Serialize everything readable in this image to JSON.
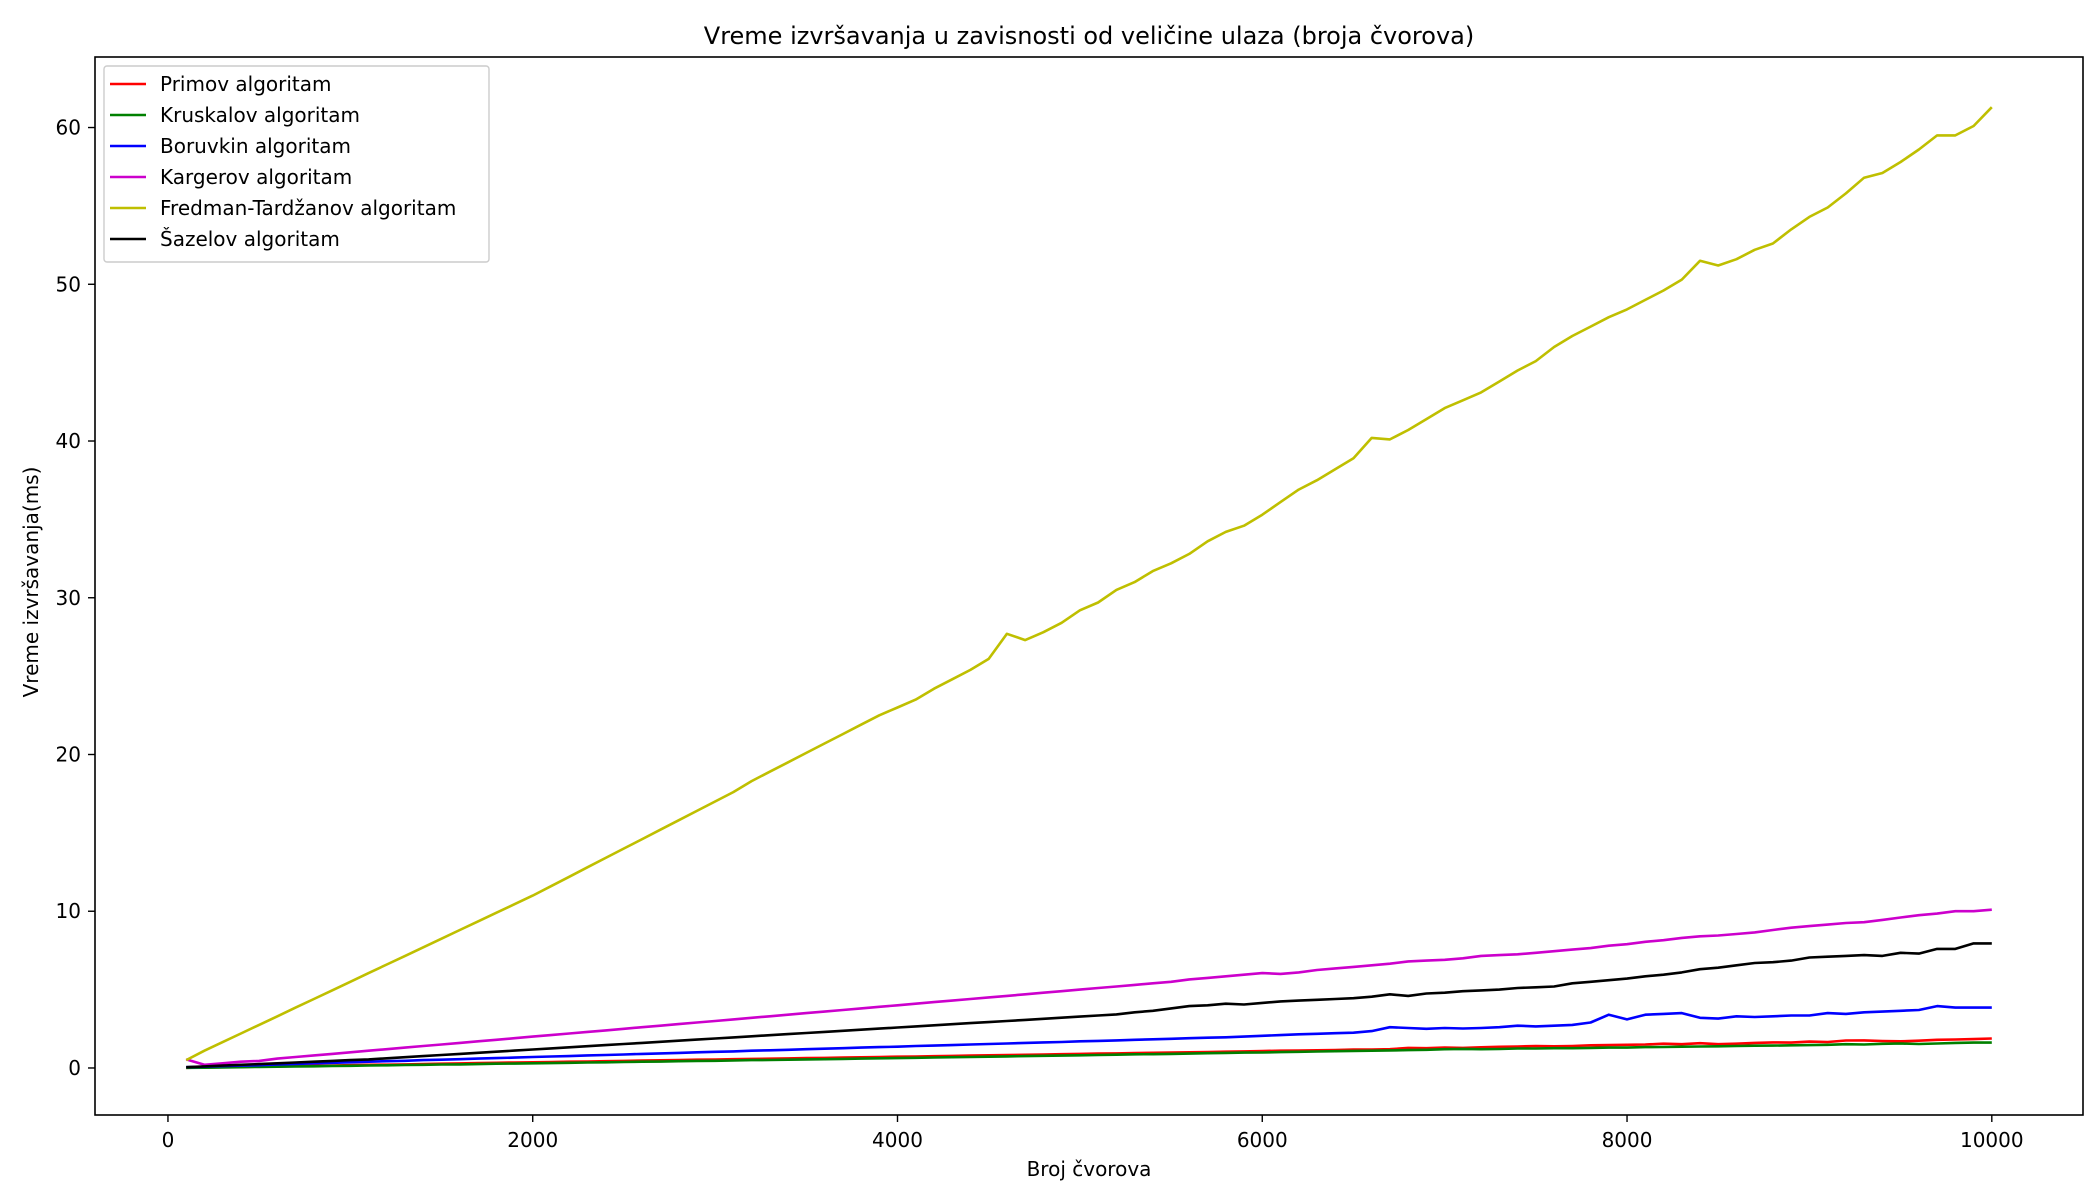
{
  "chart_data": {
    "type": "line",
    "title": "Vreme izvršavanja u zavisnosti od veličine ulaza (broja čvorova)",
    "xlabel": "Broj čvorova",
    "ylabel": "Vreme izvršavanja(ms)",
    "xlim": [
      -400,
      10500
    ],
    "ylim": [
      -3,
      64.5
    ],
    "xticks": [
      0,
      2000,
      4000,
      6000,
      8000,
      10000
    ],
    "yticks": [
      0,
      10,
      20,
      30,
      40,
      50,
      60
    ],
    "grid": false,
    "legend_position": "top-left",
    "x": [
      100,
      200,
      300,
      400,
      500,
      600,
      700,
      800,
      900,
      1000,
      1100,
      1200,
      1300,
      1400,
      1500,
      1600,
      1700,
      1800,
      1900,
      2000,
      2100,
      2200,
      2300,
      2400,
      2500,
      2600,
      2700,
      2800,
      2900,
      3000,
      3100,
      3200,
      3300,
      3400,
      3500,
      3600,
      3700,
      3800,
      3900,
      4000,
      4100,
      4200,
      4300,
      4400,
      4500,
      4600,
      4700,
      4800,
      4900,
      5000,
      5100,
      5200,
      5300,
      5400,
      5500,
      5600,
      5700,
      5800,
      5900,
      6000,
      6100,
      6200,
      6300,
      6400,
      6500,
      6600,
      6700,
      6800,
      6900,
      7000,
      7100,
      7200,
      7300,
      7400,
      7500,
      7600,
      7700,
      7800,
      7900,
      8000,
      8100,
      8200,
      8300,
      8400,
      8500,
      8600,
      8700,
      8800,
      8900,
      9000,
      9100,
      9200,
      9300,
      9400,
      9500,
      9600,
      9700,
      9800,
      9900,
      10000
    ],
    "series": [
      {
        "name": "Primov algoritam",
        "color": "#ff0000",
        "values": [
          0.01,
          0.03,
          0.05,
          0.07,
          0.09,
          0.1,
          0.12,
          0.14,
          0.16,
          0.18,
          0.2,
          0.21,
          0.23,
          0.25,
          0.27,
          0.29,
          0.31,
          0.33,
          0.35,
          0.36,
          0.38,
          0.4,
          0.41,
          0.43,
          0.45,
          0.47,
          0.49,
          0.51,
          0.53,
          0.54,
          0.56,
          0.58,
          0.59,
          0.61,
          0.63,
          0.64,
          0.66,
          0.68,
          0.7,
          0.72,
          0.73,
          0.75,
          0.77,
          0.79,
          0.81,
          0.82,
          0.84,
          0.86,
          0.88,
          0.9,
          0.92,
          0.93,
          0.95,
          0.97,
          0.99,
          1.0,
          1.02,
          1.04,
          1.06,
          1.08,
          1.1,
          1.11,
          1.13,
          1.15,
          1.17,
          1.18,
          1.2,
          1.28,
          1.26,
          1.3,
          1.28,
          1.32,
          1.35,
          1.37,
          1.4,
          1.38,
          1.4,
          1.45,
          1.46,
          1.48,
          1.5,
          1.55,
          1.52,
          1.58,
          1.52,
          1.55,
          1.6,
          1.63,
          1.62,
          1.68,
          1.66,
          1.75,
          1.76,
          1.72,
          1.7,
          1.74,
          1.8,
          1.82,
          1.84,
          1.88
        ]
      },
      {
        "name": "Kruskalov algoritam",
        "color": "#008000",
        "values": [
          0.01,
          0.02,
          0.04,
          0.05,
          0.07,
          0.08,
          0.1,
          0.11,
          0.13,
          0.14,
          0.16,
          0.17,
          0.19,
          0.2,
          0.22,
          0.23,
          0.25,
          0.27,
          0.28,
          0.3,
          0.31,
          0.33,
          0.35,
          0.36,
          0.38,
          0.4,
          0.41,
          0.43,
          0.45,
          0.46,
          0.48,
          0.5,
          0.51,
          0.53,
          0.55,
          0.56,
          0.58,
          0.6,
          0.62,
          0.63,
          0.65,
          0.67,
          0.69,
          0.7,
          0.72,
          0.74,
          0.76,
          0.78,
          0.79,
          0.81,
          0.83,
          0.85,
          0.87,
          0.88,
          0.9,
          0.92,
          0.94,
          0.96,
          0.98,
          0.99,
          1.01,
          1.03,
          1.05,
          1.07,
          1.09,
          1.1,
          1.12,
          1.14,
          1.16,
          1.2,
          1.22,
          1.2,
          1.21,
          1.24,
          1.24,
          1.26,
          1.26,
          1.28,
          1.3,
          1.3,
          1.33,
          1.34,
          1.36,
          1.37,
          1.38,
          1.4,
          1.42,
          1.43,
          1.45,
          1.46,
          1.48,
          1.52,
          1.5,
          1.54,
          1.56,
          1.53,
          1.56,
          1.6,
          1.62,
          1.62
        ]
      },
      {
        "name": "Boruvkin algoritam",
        "color": "#0000ff",
        "values": [
          0.05,
          0.08,
          0.12,
          0.15,
          0.18,
          0.22,
          0.26,
          0.3,
          0.33,
          0.36,
          0.4,
          0.43,
          0.46,
          0.5,
          0.53,
          0.56,
          0.6,
          0.63,
          0.66,
          0.7,
          0.73,
          0.76,
          0.8,
          0.83,
          0.86,
          0.9,
          0.93,
          0.96,
          1.0,
          1.03,
          1.06,
          1.1,
          1.13,
          1.16,
          1.2,
          1.23,
          1.26,
          1.3,
          1.33,
          1.36,
          1.4,
          1.43,
          1.46,
          1.5,
          1.53,
          1.56,
          1.6,
          1.63,
          1.66,
          1.7,
          1.73,
          1.76,
          1.8,
          1.83,
          1.86,
          1.9,
          1.93,
          1.96,
          2.0,
          2.05,
          2.1,
          2.15,
          2.18,
          2.22,
          2.25,
          2.35,
          2.6,
          2.55,
          2.5,
          2.55,
          2.52,
          2.55,
          2.6,
          2.7,
          2.65,
          2.7,
          2.75,
          2.9,
          3.4,
          3.1,
          3.4,
          3.45,
          3.5,
          3.2,
          3.15,
          3.3,
          3.25,
          3.3,
          3.35,
          3.35,
          3.5,
          3.45,
          3.55,
          3.6,
          3.65,
          3.7,
          3.95,
          3.85,
          3.85,
          3.85
        ]
      },
      {
        "name": "Kargerov algoritam",
        "color": "#cc00cc",
        "values": [
          0.55,
          0.2,
          0.3,
          0.4,
          0.45,
          0.6,
          0.7,
          0.8,
          0.9,
          1.0,
          1.1,
          1.2,
          1.3,
          1.4,
          1.5,
          1.6,
          1.7,
          1.8,
          1.9,
          2.0,
          2.1,
          2.2,
          2.3,
          2.4,
          2.5,
          2.6,
          2.7,
          2.8,
          2.9,
          3.0,
          3.1,
          3.2,
          3.3,
          3.4,
          3.5,
          3.6,
          3.7,
          3.8,
          3.9,
          4.0,
          4.1,
          4.2,
          4.3,
          4.4,
          4.5,
          4.6,
          4.7,
          4.8,
          4.9,
          5.0,
          5.1,
          5.2,
          5.3,
          5.4,
          5.5,
          5.65,
          5.75,
          5.85,
          5.95,
          6.05,
          6.0,
          6.1,
          6.25,
          6.35,
          6.45,
          6.55,
          6.65,
          6.8,
          6.85,
          6.9,
          7.0,
          7.15,
          7.2,
          7.25,
          7.35,
          7.45,
          7.55,
          7.65,
          7.8,
          7.9,
          8.05,
          8.15,
          8.3,
          8.4,
          8.45,
          8.55,
          8.65,
          8.8,
          8.95,
          9.05,
          9.15,
          9.25,
          9.3,
          9.45,
          9.6,
          9.75,
          9.85,
          10.0,
          10.0,
          10.1
        ]
      },
      {
        "name": "Fredman-Tardžanov algoritam",
        "color": "#bfbf00",
        "values": [
          0.5,
          1.1,
          1.65,
          2.2,
          2.75,
          3.3,
          3.85,
          4.4,
          4.95,
          5.5,
          6.05,
          6.6,
          7.15,
          7.7,
          8.25,
          8.8,
          9.35,
          9.9,
          10.45,
          11.0,
          11.6,
          12.2,
          12.8,
          13.4,
          14.0,
          14.6,
          15.2,
          15.8,
          16.4,
          17.0,
          17.6,
          18.3,
          18.9,
          19.5,
          20.1,
          20.7,
          21.3,
          21.9,
          22.5,
          23.0,
          23.5,
          24.2,
          24.8,
          25.4,
          26.1,
          27.7,
          27.3,
          27.8,
          28.4,
          29.2,
          29.7,
          30.5,
          31.0,
          31.7,
          32.2,
          32.8,
          33.6,
          34.2,
          34.6,
          35.3,
          36.1,
          36.9,
          37.5,
          38.2,
          38.9,
          40.2,
          40.1,
          40.7,
          41.4,
          42.1,
          42.6,
          43.1,
          43.8,
          44.5,
          45.1,
          46.0,
          46.7,
          47.3,
          47.9,
          48.4,
          49.0,
          49.6,
          50.3,
          51.5,
          51.2,
          51.6,
          52.2,
          52.6,
          53.5,
          54.3,
          54.9,
          55.8,
          56.8,
          57.1,
          57.8,
          58.6,
          59.5,
          59.5,
          60.1,
          61.3
        ]
      },
      {
        "name": "Šazelov algoritam",
        "color": "#000000",
        "values": [
          0.05,
          0.1,
          0.15,
          0.2,
          0.25,
          0.3,
          0.35,
          0.4,
          0.45,
          0.5,
          0.55,
          0.62,
          0.69,
          0.76,
          0.83,
          0.9,
          0.97,
          1.04,
          1.11,
          1.18,
          1.25,
          1.32,
          1.39,
          1.46,
          1.53,
          1.6,
          1.67,
          1.74,
          1.81,
          1.88,
          1.95,
          2.02,
          2.09,
          2.16,
          2.23,
          2.3,
          2.37,
          2.44,
          2.51,
          2.58,
          2.65,
          2.72,
          2.79,
          2.86,
          2.93,
          3.0,
          3.07,
          3.14,
          3.21,
          3.28,
          3.35,
          3.42,
          3.55,
          3.65,
          3.8,
          3.95,
          4.0,
          4.1,
          4.05,
          4.15,
          4.25,
          4.3,
          4.35,
          4.4,
          4.45,
          4.55,
          4.7,
          4.6,
          4.75,
          4.8,
          4.9,
          4.95,
          5.0,
          5.1,
          5.15,
          5.2,
          5.4,
          5.5,
          5.6,
          5.7,
          5.85,
          5.95,
          6.1,
          6.3,
          6.4,
          6.55,
          6.7,
          6.75,
          6.85,
          7.05,
          7.1,
          7.15,
          7.2,
          7.15,
          7.35,
          7.3,
          7.6,
          7.6,
          7.95,
          7.95
        ]
      }
    ]
  }
}
